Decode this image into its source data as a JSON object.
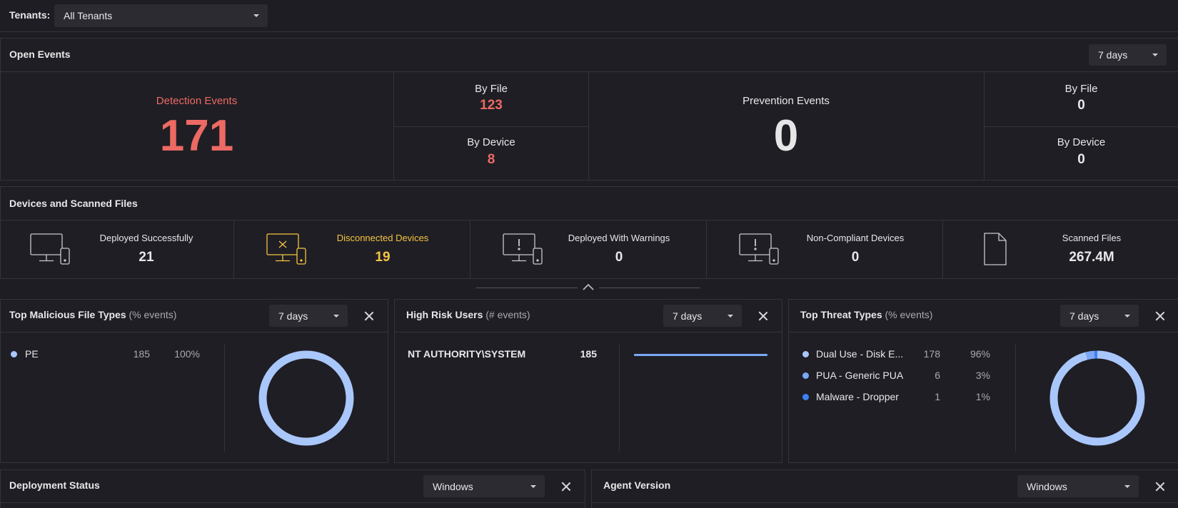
{
  "tenants": {
    "label": "Tenants:",
    "selected": "All Tenants"
  },
  "open_events": {
    "title": "Open Events",
    "range": "7 days",
    "detection": {
      "label": "Detection Events",
      "value": "171"
    },
    "detection_by_file": {
      "label": "By File",
      "value": "123"
    },
    "detection_by_device": {
      "label": "By Device",
      "value": "8"
    },
    "prevention": {
      "label": "Prevention Events",
      "value": "0"
    },
    "prevention_by_file": {
      "label": "By File",
      "value": "0"
    },
    "prevention_by_device": {
      "label": "By Device",
      "value": "0"
    }
  },
  "devices": {
    "title": "Devices and Scanned Files",
    "items": [
      {
        "label": "Deployed Successfully",
        "value": "21",
        "icon": "device-icon"
      },
      {
        "label": "Disconnected Devices",
        "value": "19",
        "icon": "device-disconnected-icon",
        "color": "#f5c542"
      },
      {
        "label": "Deployed With Warnings",
        "value": "0",
        "icon": "device-warning-icon"
      },
      {
        "label": "Non-Compliant Devices",
        "value": "0",
        "icon": "device-noncompliant-icon"
      },
      {
        "label": "Scanned Files",
        "value": "267.4M",
        "icon": "file-icon"
      }
    ]
  },
  "widgets": {
    "malicious_file_types": {
      "title": "Top Malicious File Types",
      "subtitle": "(% events)",
      "range": "7 days",
      "rows": [
        {
          "name": "PE",
          "count": "185",
          "percent": "100%"
        }
      ]
    },
    "high_risk_users": {
      "title": "High Risk Users",
      "subtitle": "(# events)",
      "range": "7 days",
      "rows": [
        {
          "name": "NT AUTHORITY\\SYSTEM",
          "count": "185"
        }
      ]
    },
    "threat_types": {
      "title": "Top Threat Types",
      "subtitle": "(% events)",
      "range": "7 days",
      "rows": [
        {
          "name": "Dual Use - Disk E...",
          "count": "178",
          "percent": "96%"
        },
        {
          "name": "PUA - Generic PUA",
          "count": "6",
          "percent": "3%"
        },
        {
          "name": "Malware - Dropper",
          "count": "1",
          "percent": "1%"
        }
      ]
    },
    "deployment_status": {
      "title": "Deployment Status",
      "platform": "Windows"
    },
    "agent_version": {
      "title": "Agent Version",
      "platform": "Windows"
    }
  },
  "colors": {
    "accent_red": "#ec6a63",
    "accent_yellow": "#f5c542",
    "donut_light": "#a9c7fb",
    "donut_mid": "#7aa8f7",
    "donut_dark": "#3b82f6"
  }
}
